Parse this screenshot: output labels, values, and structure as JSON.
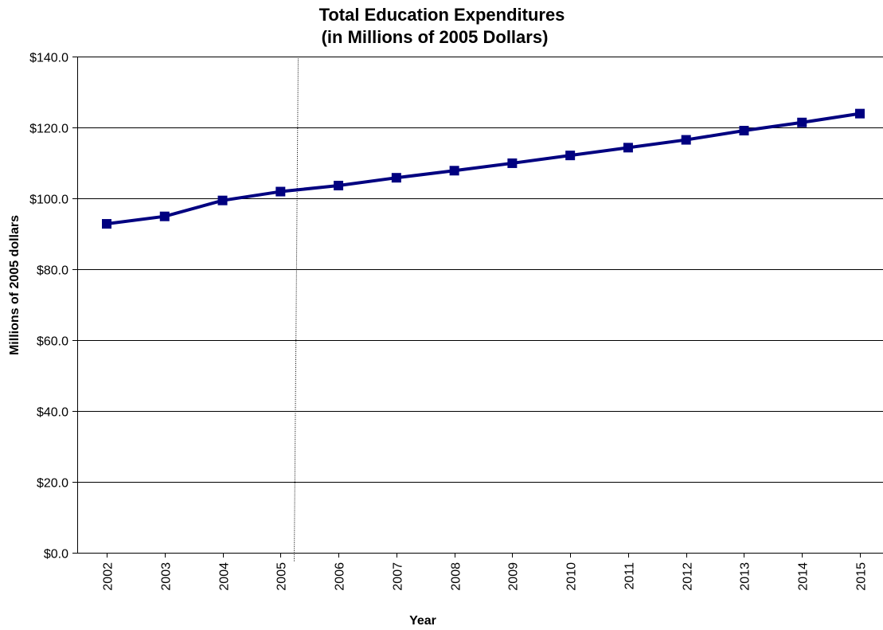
{
  "chart_data": {
    "type": "line",
    "title": [
      "Total Education Expenditures",
      "(in Millions of 2005 Dollars)"
    ],
    "xlabel": "Year",
    "ylabel": "Millions of 2005 dollars",
    "categories": [
      "2002",
      "2003",
      "2004",
      "2005",
      "2006",
      "2007",
      "2008",
      "2009",
      "2010",
      "2011",
      "2012",
      "2013",
      "2014",
      "2015"
    ],
    "series": [
      {
        "values": [
          92.8,
          94.9,
          99.4,
          101.9,
          103.6,
          105.8,
          107.8,
          109.9,
          112.1,
          114.3,
          116.5,
          119.1,
          121.4,
          123.9
        ]
      }
    ],
    "ylim": [
      0,
      140
    ],
    "yticks": [
      0,
      20,
      40,
      60,
      80,
      100,
      120,
      140
    ],
    "ytick_labels": [
      "$0.0",
      "$20.0",
      "$40.0",
      "$60.0",
      "$80.0",
      "$100.0",
      "$120.0",
      "$140.0"
    ],
    "grid": "horizontal",
    "reference_line_after": "2005",
    "colors": {
      "series": "#000080",
      "grid": "#000000",
      "reference_line": "#000000"
    }
  }
}
